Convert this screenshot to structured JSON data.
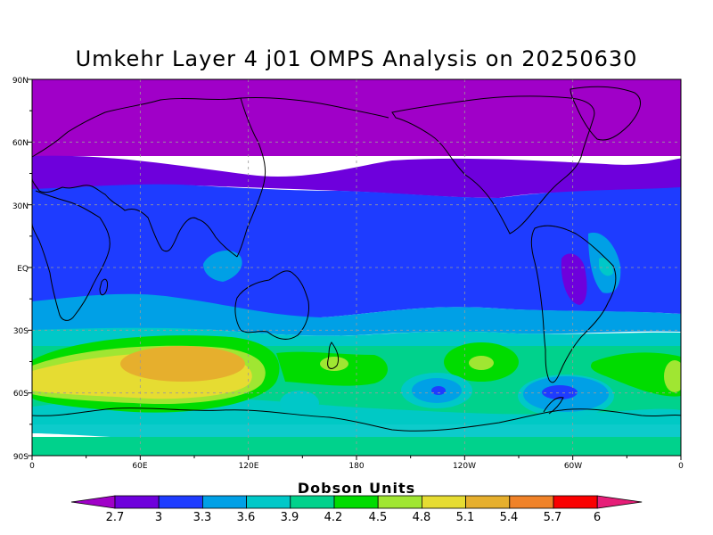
{
  "title": "Umkehr Layer 4 j01 OMPS Analysis on 20250630",
  "map": {
    "lat_labels": [
      "90N",
      "60N",
      "30N",
      "EQ",
      "30S",
      "60S",
      "90S"
    ],
    "lon_labels": [
      "0",
      "60E",
      "120E",
      "180",
      "120W",
      "60W",
      "0"
    ],
    "grid": "dashed"
  },
  "colorbar": {
    "title": "Dobson Units",
    "tick_labels": [
      "2.7",
      "3",
      "3.3",
      "3.6",
      "3.9",
      "4.2",
      "4.5",
      "4.8",
      "5.1",
      "5.4",
      "5.7",
      "6"
    ],
    "colors": [
      "#a000c8",
      "#6e00dc",
      "#1e3cff",
      "#00a0e6",
      "#00c8c8",
      "#00d28c",
      "#00dc00",
      "#a0e632",
      "#e6dc32",
      "#e6af2d",
      "#f08228",
      "#fa0000",
      "#e61e78"
    ]
  },
  "chart_data": {
    "type": "heatmap",
    "title": "Umkehr Layer 4 j01 OMPS Analysis on 20250630",
    "units": "Dobson Units",
    "levels": [
      2.7,
      3,
      3.3,
      3.6,
      3.9,
      4.2,
      4.5,
      4.8,
      5.1,
      5.4,
      5.7,
      6
    ],
    "xlim": [
      0,
      360
    ],
    "ylim": [
      -90,
      90
    ],
    "lat_band_values": [
      {
        "lat_range": [
          60,
          90
        ],
        "value": 2.7
      },
      {
        "lat_range": [
          35,
          60
        ],
        "value": 3.0
      },
      {
        "lat_range": [
          -20,
          35
        ],
        "value": 3.15
      },
      {
        "lat_range": [
          -30,
          -20
        ],
        "value": 3.45
      },
      {
        "lat_range": [
          -38,
          -30
        ],
        "value": 3.75
      },
      {
        "lat_range": [
          -65,
          -38
        ],
        "value": 4.35
      },
      {
        "lat_range": [
          -90,
          -65
        ],
        "value": 4.05
      }
    ],
    "features": [
      {
        "lon": 82,
        "lat": -47,
        "value": 5.25
      },
      {
        "lon": 245,
        "lat": -48,
        "value": 4.65
      },
      {
        "lon": 168,
        "lat": -47,
        "value": 4.65
      },
      {
        "lon": 300,
        "lat": -60,
        "value": 3.45
      },
      {
        "lon": 235,
        "lat": -60,
        "value": 3.45
      },
      {
        "lon": 300,
        "lat": -5,
        "value": 2.85
      }
    ]
  }
}
